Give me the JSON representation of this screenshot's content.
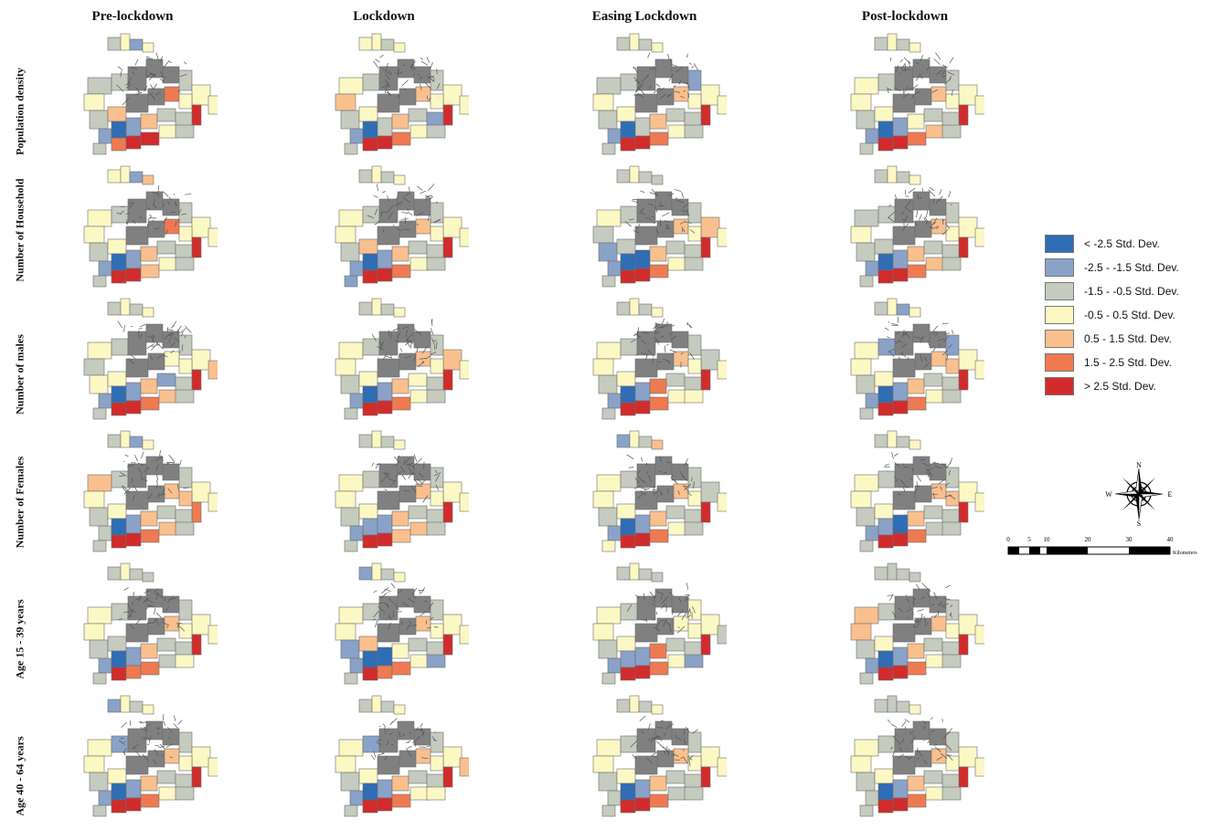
{
  "columns": [
    "Pre-lockdown",
    "Lockdown",
    "Easing Lockdown",
    "Post-lockdown"
  ],
  "rows": [
    "Population density",
    "Number of Household",
    "Number of males",
    "Number of Females",
    "Age 15 - 39 years",
    "Age 40 - 64 years"
  ],
  "legend": [
    {
      "label": "< -2.5 Std. Dev.",
      "color": "#2f6db5"
    },
    {
      "label": "-2.5 - -1.5 Std. Dev.",
      "color": "#8aa2c8"
    },
    {
      "label": "-1.5 - -0.5 Std. Dev.",
      "color": "#c5cbbe"
    },
    {
      "label": "-0.5 - 0.5 Std. Dev.",
      "color": "#fcf8c4"
    },
    {
      "label": "0.5 - 1.5 Std. Dev.",
      "color": "#f9c08e"
    },
    {
      "label": "1.5 - 2.5 Std. Dev.",
      "color": "#ef7a51"
    },
    {
      "label": "> 2.5 Std. Dev.",
      "color": "#d22b2b"
    }
  ],
  "compass": {
    "north": "N",
    "south": "S",
    "east": "E",
    "west": "W"
  },
  "scale": {
    "ticks": [
      "0",
      "5",
      "10",
      "20",
      "30",
      "40"
    ],
    "unit": "Kilometers"
  }
}
